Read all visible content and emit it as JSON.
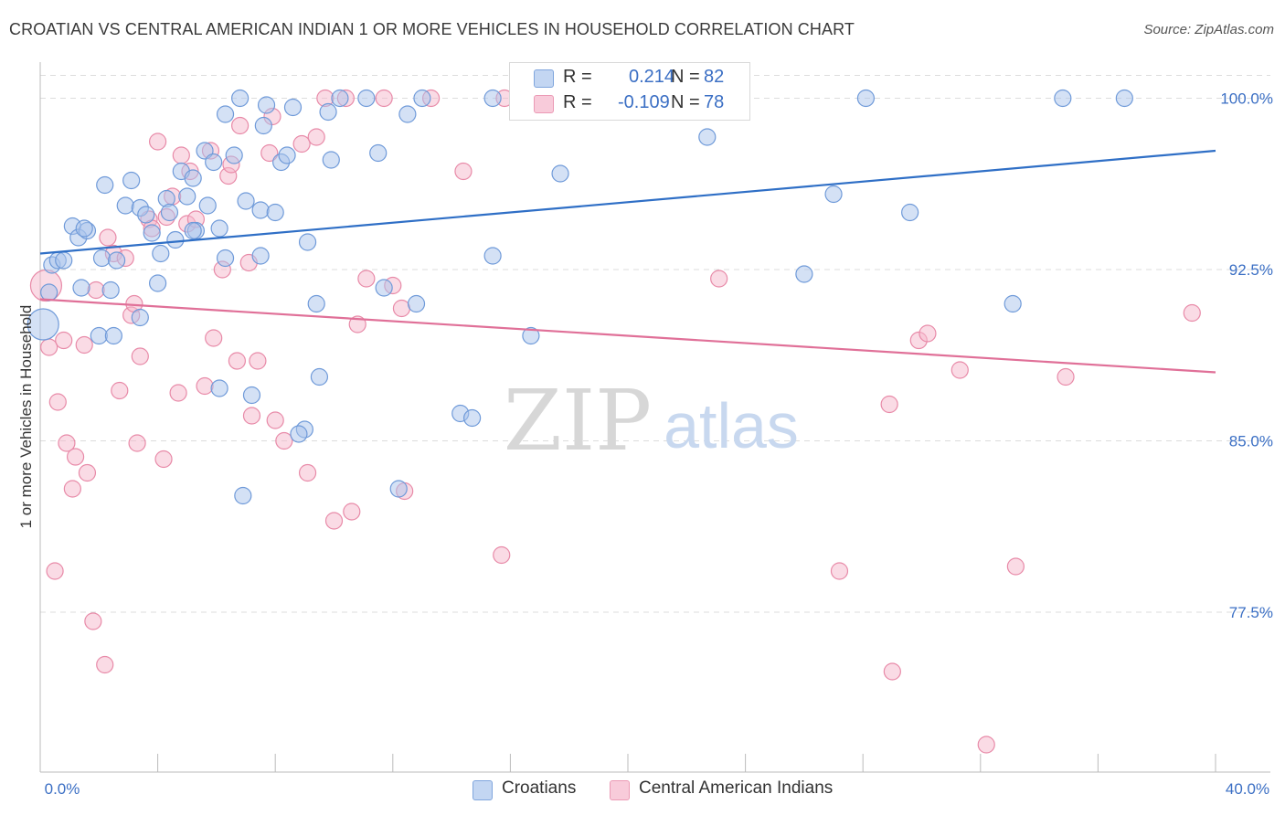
{
  "header": {
    "title": "CROATIAN VS CENTRAL AMERICAN INDIAN 1 OR MORE VEHICLES IN HOUSEHOLD CORRELATION CHART",
    "source": "Source: ZipAtlas.com"
  },
  "legend": {
    "series1": {
      "r_label": "R =",
      "r_value": "0.214",
      "n_label": "N =",
      "n_value": "82"
    },
    "series2": {
      "r_label": "R =",
      "r_value": "-0.109",
      "n_label": "N =",
      "n_value": "78"
    }
  },
  "bottom_legend": {
    "series1": "Croatians",
    "series2": "Central American Indians"
  },
  "colors": {
    "blue_fill": "#a9c4ec",
    "blue_stroke": "#6f9ad9",
    "blue_line": "#2f6fc6",
    "pink_fill": "#f5b8cb",
    "pink_stroke": "#e88aa8",
    "pink_line": "#e07098",
    "tick_label": "#3b6fc4",
    "grid": "#dcdcdc"
  },
  "chart_data": {
    "type": "scatter",
    "xlabel": "",
    "ylabel": "1 or more Vehicles in Household",
    "xlim": [
      0,
      40
    ],
    "ylim": [
      70.5,
      101.5
    ],
    "x_tick_labels": [
      "0.0%",
      "40.0%"
    ],
    "y_ticks": [
      77.5,
      85.0,
      92.5,
      100.0
    ],
    "y_tick_labels": [
      "77.5%",
      "85.0%",
      "92.5%",
      "100.0%"
    ],
    "watermark": "ZIPatlas",
    "grid": true,
    "series": [
      {
        "name": "Croatians",
        "trendline": {
          "x": [
            0,
            40
          ],
          "y": [
            93.2,
            97.7
          ]
        },
        "points": [
          [
            0.1,
            90.1
          ],
          [
            0.3,
            91.5
          ],
          [
            0.4,
            92.7
          ],
          [
            0.6,
            92.9
          ],
          [
            0.8,
            92.9
          ],
          [
            1.1,
            94.4
          ],
          [
            1.3,
            93.9
          ],
          [
            1.6,
            94.2
          ],
          [
            1.5,
            94.3
          ],
          [
            2.2,
            96.2
          ],
          [
            2.1,
            93.0
          ],
          [
            2.6,
            92.9
          ],
          [
            2.9,
            95.3
          ],
          [
            3.1,
            96.4
          ],
          [
            3.4,
            95.2
          ],
          [
            3.6,
            94.9
          ],
          [
            3.8,
            94.1
          ],
          [
            4.1,
            93.2
          ],
          [
            4.3,
            95.6
          ],
          [
            4.4,
            95.0
          ],
          [
            4.6,
            93.8
          ],
          [
            4.8,
            96.8
          ],
          [
            5.0,
            95.7
          ],
          [
            5.2,
            96.5
          ],
          [
            5.3,
            94.2
          ],
          [
            5.6,
            97.7
          ],
          [
            5.7,
            95.3
          ],
          [
            5.9,
            97.2
          ],
          [
            6.1,
            94.3
          ],
          [
            6.3,
            99.3
          ],
          [
            6.6,
            97.5
          ],
          [
            6.8,
            100.0
          ],
          [
            7.0,
            95.5
          ],
          [
            7.5,
            95.1
          ],
          [
            7.6,
            98.8
          ],
          [
            7.7,
            99.7
          ],
          [
            8.0,
            95.0
          ],
          [
            8.2,
            97.2
          ],
          [
            8.4,
            97.5
          ],
          [
            8.6,
            99.6
          ],
          [
            9.1,
            93.7
          ],
          [
            9.8,
            99.4
          ],
          [
            9.9,
            97.3
          ],
          [
            10.2,
            100.0
          ],
          [
            11.1,
            100.0
          ],
          [
            11.5,
            97.6
          ],
          [
            12.5,
            99.3
          ],
          [
            13.0,
            100.0
          ],
          [
            15.4,
            100.0
          ],
          [
            17.1,
            100.0
          ],
          [
            17.7,
            96.7
          ],
          [
            22.7,
            98.3
          ],
          [
            27.0,
            95.8
          ],
          [
            28.1,
            100.0
          ],
          [
            29.6,
            95.0
          ],
          [
            33.1,
            91.0
          ],
          [
            34.8,
            100.0
          ],
          [
            36.9,
            100.0
          ],
          [
            26.0,
            92.3
          ],
          [
            15.4,
            93.1
          ],
          [
            9.4,
            91.0
          ],
          [
            11.7,
            91.7
          ],
          [
            12.8,
            91.0
          ],
          [
            16.7,
            89.6
          ],
          [
            3.4,
            90.4
          ],
          [
            2.4,
            91.6
          ],
          [
            1.4,
            91.7
          ],
          [
            2.0,
            89.6
          ],
          [
            2.5,
            89.6
          ],
          [
            4.0,
            91.9
          ],
          [
            6.1,
            87.3
          ],
          [
            7.2,
            87.0
          ],
          [
            9.5,
            87.8
          ],
          [
            9.0,
            85.5
          ],
          [
            8.8,
            85.3
          ],
          [
            14.3,
            86.2
          ],
          [
            14.7,
            86.0
          ],
          [
            12.2,
            82.9
          ],
          [
            6.9,
            82.6
          ],
          [
            6.3,
            93.0
          ],
          [
            7.5,
            93.1
          ],
          [
            5.2,
            94.2
          ]
        ]
      },
      {
        "name": "Central American Indians",
        "trendline": {
          "x": [
            0,
            40
          ],
          "y": [
            91.2,
            88.0
          ]
        },
        "points": [
          [
            0.2,
            91.8
          ],
          [
            0.3,
            89.1
          ],
          [
            0.5,
            79.3
          ],
          [
            0.6,
            86.7
          ],
          [
            0.8,
            89.4
          ],
          [
            0.9,
            84.9
          ],
          [
            1.1,
            82.9
          ],
          [
            1.2,
            84.3
          ],
          [
            1.5,
            89.2
          ],
          [
            1.6,
            83.6
          ],
          [
            1.8,
            77.1
          ],
          [
            1.9,
            91.6
          ],
          [
            2.2,
            75.2
          ],
          [
            2.3,
            93.9
          ],
          [
            2.5,
            93.2
          ],
          [
            2.7,
            87.2
          ],
          [
            2.9,
            93.0
          ],
          [
            3.1,
            90.5
          ],
          [
            3.2,
            91.0
          ],
          [
            3.3,
            84.9
          ],
          [
            3.4,
            88.7
          ],
          [
            3.7,
            94.7
          ],
          [
            3.8,
            94.3
          ],
          [
            4.0,
            98.1
          ],
          [
            4.2,
            84.2
          ],
          [
            4.3,
            94.8
          ],
          [
            4.5,
            95.7
          ],
          [
            4.7,
            87.1
          ],
          [
            4.8,
            97.5
          ],
          [
            5.0,
            94.5
          ],
          [
            5.1,
            96.8
          ],
          [
            5.3,
            94.7
          ],
          [
            5.6,
            87.4
          ],
          [
            5.8,
            97.7
          ],
          [
            5.9,
            89.5
          ],
          [
            6.2,
            92.5
          ],
          [
            6.4,
            96.6
          ],
          [
            6.5,
            97.1
          ],
          [
            6.7,
            88.5
          ],
          [
            6.8,
            98.8
          ],
          [
            7.1,
            92.8
          ],
          [
            7.2,
            86.1
          ],
          [
            7.4,
            88.5
          ],
          [
            7.8,
            97.6
          ],
          [
            7.9,
            99.2
          ],
          [
            8.0,
            85.9
          ],
          [
            8.3,
            85.0
          ],
          [
            8.9,
            98.0
          ],
          [
            9.1,
            83.6
          ],
          [
            9.4,
            98.3
          ],
          [
            9.7,
            100.0
          ],
          [
            10.0,
            81.5
          ],
          [
            10.4,
            100.0
          ],
          [
            10.6,
            81.9
          ],
          [
            10.8,
            90.1
          ],
          [
            11.1,
            92.1
          ],
          [
            11.7,
            100.0
          ],
          [
            12.3,
            90.8
          ],
          [
            12.4,
            82.8
          ],
          [
            13.3,
            100.0
          ],
          [
            14.4,
            96.8
          ],
          [
            15.7,
            80.0
          ],
          [
            15.8,
            100.0
          ],
          [
            17.2,
            100.0
          ],
          [
            19.2,
            100.0
          ],
          [
            22.3,
            100.0
          ],
          [
            23.1,
            92.1
          ],
          [
            27.2,
            79.3
          ],
          [
            28.9,
            86.6
          ],
          [
            29.0,
            74.9
          ],
          [
            29.9,
            89.4
          ],
          [
            30.2,
            89.7
          ],
          [
            31.3,
            88.1
          ],
          [
            32.2,
            71.7
          ],
          [
            33.2,
            79.5
          ],
          [
            34.9,
            87.8
          ],
          [
            39.2,
            90.6
          ],
          [
            12.0,
            91.8
          ]
        ]
      }
    ]
  }
}
